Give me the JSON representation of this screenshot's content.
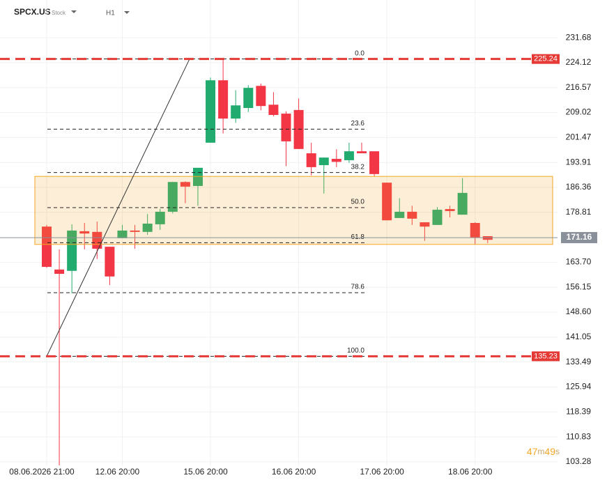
{
  "chart_data": {
    "type": "candlestick",
    "title": "SPCX.US",
    "subtitle": "Stock",
    "interval": "H1",
    "categories": [
      "08.06.2026 21:00",
      null,
      null,
      null,
      null,
      null,
      "12.06 20:00",
      null,
      null,
      null,
      null,
      null,
      null,
      "15.06 20:00",
      null,
      null,
      null,
      null,
      null,
      null,
      "16.06 20:00",
      null,
      null,
      null,
      null,
      null,
      null,
      "17.06 20:00",
      null,
      null,
      null,
      null,
      null,
      null,
      "18.06 20:00",
      null
    ],
    "open": [
      174.5,
      161.5,
      161.1,
      173.1,
      172.9,
      168.4,
      171.0,
      173.3,
      172.9,
      175.2,
      179.0,
      188.0,
      186.8,
      199.9,
      218.8,
      207.2,
      210.4,
      217.1,
      211.4,
      208.7,
      209.8,
      196.7,
      193.1,
      195.0,
      194.6,
      197.3,
      197.3,
      187.8,
      177.1,
      179.0,
      175.8,
      175.0,
      179.8,
      178.1,
      175.6,
      171.6
    ],
    "high": [
      175.0,
      167.6,
      175.2,
      175.6,
      176.0,
      168.4,
      175.0,
      175.0,
      178.3,
      179.9,
      188.0,
      188.2,
      192.3,
      219.6,
      225.2,
      215.8,
      217.3,
      217.8,
      215.2,
      209.4,
      213.3,
      199.9,
      195.4,
      197.9,
      199.9,
      199.9,
      197.3,
      187.8,
      183.1,
      180.8,
      175.8,
      180.4,
      180.8,
      189.2,
      175.8,
      171.6
    ],
    "low": [
      162.0,
      102.2,
      154.3,
      167.6,
      164.7,
      156.8,
      171.0,
      167.8,
      172.0,
      173.5,
      178.5,
      181.6,
      180.8,
      199.9,
      202.7,
      205.9,
      209.2,
      209.7,
      207.9,
      192.8,
      198.0,
      190.0,
      184.5,
      192.5,
      193.8,
      196.7,
      189.8,
      176.4,
      177.1,
      175.0,
      170.2,
      175.0,
      177.3,
      178.1,
      169.2,
      169.5
    ],
    "close": [
      162.3,
      160.2,
      173.3,
      172.4,
      167.8,
      159.4,
      173.3,
      172.9,
      175.4,
      179.0,
      188.0,
      186.6,
      192.3,
      218.8,
      207.2,
      211.2,
      216.5,
      211.0,
      208.3,
      200.3,
      198.0,
      192.5,
      195.4,
      194.1,
      197.3,
      196.7,
      190.4,
      176.4,
      179.0,
      176.9,
      174.5,
      179.6,
      179.2,
      184.7,
      171.2,
      170.5
    ],
    "up_color": "#22ab6e",
    "down_color": "#f23645",
    "ylim": [
      102.2,
      243.1
    ],
    "yticks": [
      231.68,
      224.12,
      216.57,
      209.02,
      201.47,
      193.91,
      186.36,
      178.81,
      {
        "value": 163.7,
        "label": "163.70"
      },
      156.15,
      {
        "value": 148.6,
        "label": "148.60"
      },
      141.05,
      133.49,
      125.94,
      118.39,
      110.83,
      103.28
    ],
    "grid": true,
    "lines": [
      {
        "value": 225.24,
        "color": "#e53935"
      },
      {
        "value": 135.23,
        "color": "#e53935"
      }
    ],
    "current_price": {
      "value": 171.16,
      "color": "#8a9099"
    },
    "zone": {
      "low": 169.1,
      "high": 189.7,
      "color": "#f5a623"
    },
    "fib": {
      "high": 225.24,
      "low": 135.23,
      "levels": [
        {
          "value": 0,
          "label": "0.0"
        },
        23.6,
        38.2,
        {
          "value": 50,
          "label": "50.0"
        },
        61.8,
        78.6,
        {
          "value": 100,
          "label": "100.0"
        }
      ]
    },
    "timer": [
      "47",
      "m",
      "49",
      "s"
    ]
  }
}
